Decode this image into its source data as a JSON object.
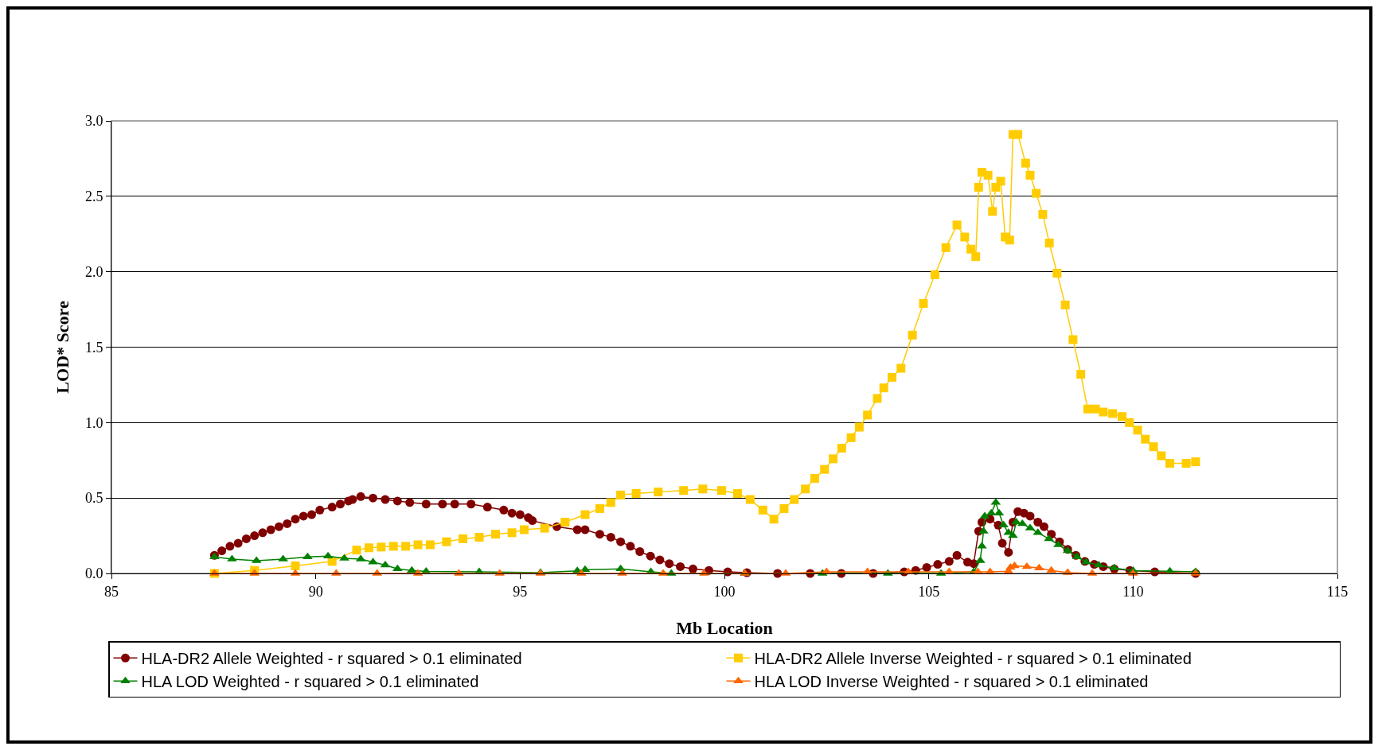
{
  "chart_data": {
    "type": "line",
    "xlabel": "Mb Location",
    "ylabel": "LOD* Score",
    "xlim": [
      85,
      115
    ],
    "xticks": [
      85,
      90,
      95,
      100,
      105,
      110,
      115
    ],
    "ylim": [
      0,
      3
    ],
    "yticks": [
      {
        "value": 0,
        "label": "0.0"
      },
      {
        "value": 0.5,
        "label": "0.5"
      },
      {
        "value": 1,
        "label": "1.0"
      },
      {
        "value": 1.5,
        "label": "1.5"
      },
      {
        "value": 2,
        "label": "2.0"
      },
      {
        "value": 2.5,
        "label": "2.5"
      },
      {
        "value": 3,
        "label": "3.0"
      }
    ],
    "grid": "y",
    "legend": "bottom",
    "line_style": "solid",
    "series": [
      {
        "name": "HLA-DR2 Allele Weighted - r squared > 0.1 eliminated",
        "color": "#800000",
        "marker": "circle",
        "x": [
          87.52,
          87.7,
          87.9,
          88.1,
          88.3,
          88.5,
          88.7,
          88.9,
          89.1,
          89.3,
          89.5,
          89.7,
          89.9,
          90.1,
          90.4,
          90.6,
          90.8,
          90.9,
          91.1,
          91.4,
          91.7,
          92.0,
          92.3,
          92.7,
          93.1,
          93.4,
          93.8,
          94.2,
          94.6,
          94.8,
          95.0,
          95.2,
          95.3,
          95.9,
          96.4,
          96.59,
          96.95,
          97.22,
          97.46,
          97.7,
          97.93,
          98.19,
          98.42,
          98.65,
          98.92,
          99.23,
          99.62,
          100.08,
          100.55,
          101.3,
          102.1,
          102.86,
          103.64,
          104.4,
          104.68,
          104.95,
          105.22,
          105.5,
          105.69,
          105.95,
          106.1,
          106.22,
          106.3,
          106.5,
          106.7,
          106.8,
          106.95,
          107.06,
          107.18,
          107.33,
          107.48,
          107.67,
          107.82,
          108.0,
          108.2,
          108.4,
          108.6,
          108.82,
          109.05,
          109.27,
          109.54,
          109.92,
          110.53,
          111.53
        ],
        "values": [
          0.12,
          0.15,
          0.18,
          0.2,
          0.23,
          0.25,
          0.27,
          0.29,
          0.31,
          0.33,
          0.36,
          0.38,
          0.39,
          0.42,
          0.44,
          0.46,
          0.48,
          0.49,
          0.51,
          0.5,
          0.49,
          0.48,
          0.47,
          0.46,
          0.46,
          0.46,
          0.46,
          0.44,
          0.42,
          0.4,
          0.39,
          0.37,
          0.35,
          0.31,
          0.29,
          0.29,
          0.26,
          0.24,
          0.21,
          0.18,
          0.145,
          0.115,
          0.09,
          0.065,
          0.045,
          0.03,
          0.02,
          0.01,
          0.005,
          0,
          0,
          0,
          0,
          0.01,
          0.02,
          0.04,
          0.06,
          0.08,
          0.12,
          0.075,
          0.065,
          0.28,
          0.34,
          0.36,
          0.32,
          0.2,
          0.14,
          0.34,
          0.41,
          0.4,
          0.38,
          0.34,
          0.31,
          0.26,
          0.21,
          0.16,
          0.12,
          0.08,
          0.06,
          0.045,
          0.03,
          0.02,
          0.01,
          0
        ]
      },
      {
        "name": "HLA-DR2 Allele Inverse Weighted - r squared > 0.1 eliminated",
        "color": "#ffcc00",
        "marker": "square",
        "x": [
          87.52,
          88.5,
          89.5,
          90.4,
          91.0,
          91.3,
          91.6,
          91.9,
          92.2,
          92.5,
          92.8,
          93.2,
          93.6,
          94.0,
          94.4,
          94.8,
          95.1,
          95.6,
          96.1,
          96.59,
          96.95,
          97.22,
          97.46,
          97.84,
          98.38,
          99.0,
          99.47,
          99.93,
          100.32,
          100.63,
          100.94,
          101.21,
          101.46,
          101.71,
          101.98,
          102.21,
          102.45,
          102.66,
          102.87,
          103.1,
          103.3,
          103.5,
          103.74,
          103.9,
          104.1,
          104.32,
          104.6,
          104.87,
          105.15,
          105.42,
          105.69,
          105.88,
          106.03,
          106.15,
          106.22,
          106.3,
          106.45,
          106.56,
          106.64,
          106.76,
          106.87,
          106.98,
          107.06,
          107.18,
          107.37,
          107.48,
          107.63,
          107.79,
          107.95,
          108.14,
          108.34,
          108.53,
          108.72,
          108.89,
          109.08,
          109.27,
          109.5,
          109.73,
          109.91,
          110.11,
          110.3,
          110.5,
          110.69,
          110.9,
          111.3,
          111.53
        ],
        "values": [
          0,
          0.02,
          0.05,
          0.08,
          0.155,
          0.17,
          0.175,
          0.18,
          0.18,
          0.19,
          0.19,
          0.21,
          0.23,
          0.24,
          0.26,
          0.27,
          0.29,
          0.3,
          0.34,
          0.39,
          0.43,
          0.47,
          0.52,
          0.53,
          0.54,
          0.55,
          0.56,
          0.55,
          0.53,
          0.49,
          0.42,
          0.36,
          0.43,
          0.49,
          0.56,
          0.63,
          0.69,
          0.76,
          0.83,
          0.9,
          0.97,
          1.05,
          1.16,
          1.23,
          1.3,
          1.36,
          1.58,
          1.79,
          1.98,
          2.16,
          2.31,
          2.23,
          2.15,
          2.1,
          2.56,
          2.66,
          2.64,
          2.4,
          2.56,
          2.6,
          2.23,
          2.21,
          2.91,
          2.91,
          2.72,
          2.64,
          2.52,
          2.38,
          2.19,
          1.99,
          1.78,
          1.55,
          1.32,
          1.09,
          1.09,
          1.07,
          1.06,
          1.04,
          1.0,
          0.95,
          0.89,
          0.84,
          0.78,
          0.73,
          0.73,
          0.74
        ]
      },
      {
        "name": "HLA LOD Weighted - r squared > 0.1 eliminated",
        "color": "#008000",
        "marker": "triangle",
        "x": [
          87.52,
          87.95,
          88.55,
          89.2,
          89.8,
          90.3,
          90.7,
          91.1,
          91.4,
          91.7,
          92.0,
          92.35,
          92.7,
          94.0,
          95.5,
          96.4,
          96.59,
          97.46,
          98.2,
          98.7,
          100.5,
          102.4,
          104.0,
          105.3,
          106.1,
          106.26,
          106.3,
          106.34,
          106.37,
          106.53,
          106.64,
          106.72,
          106.83,
          106.95,
          107.06,
          107.14,
          107.29,
          107.48,
          107.67,
          107.94,
          108.17,
          108.4,
          108.63,
          108.85,
          109.16,
          109.54,
          110.0,
          110.9,
          111.53
        ],
        "values": [
          0.11,
          0.095,
          0.085,
          0.095,
          0.11,
          0.115,
          0.1,
          0.095,
          0.075,
          0.055,
          0.03,
          0.02,
          0.013,
          0.01,
          0.005,
          0.017,
          0.025,
          0.03,
          0.01,
          0,
          0,
          0,
          0,
          0,
          0.01,
          0.085,
          0.18,
          0.28,
          0.38,
          0.4,
          0.47,
          0.4,
          0.32,
          0.27,
          0.25,
          0.34,
          0.33,
          0.3,
          0.27,
          0.23,
          0.19,
          0.15,
          0.11,
          0.075,
          0.055,
          0.035,
          0.018,
          0.014,
          0.01
        ]
      },
      {
        "name": "HLA LOD Inverse Weighted - r squared > 0.1 eliminated",
        "color": "#ff6600",
        "marker": "triangle",
        "x": [
          87.52,
          88.5,
          89.5,
          90.5,
          91.5,
          92.5,
          93.5,
          94.5,
          95.5,
          96.5,
          97.5,
          98.5,
          99.5,
          100.5,
          101.5,
          102.5,
          103.5,
          104.5,
          105.5,
          106.2,
          106.5,
          106.95,
          107.0,
          107.1,
          107.4,
          107.7,
          108.0,
          108.4,
          109.0,
          110.0,
          111.53
        ],
        "values": [
          0,
          0,
          0,
          0,
          0,
          0,
          0,
          0,
          0,
          0,
          0,
          0,
          0,
          0,
          0,
          0.01,
          0.01,
          0.01,
          0.01,
          0.01,
          0.01,
          0.015,
          0.04,
          0.05,
          0.045,
          0.035,
          0.02,
          0.005,
          0,
          0,
          0
        ]
      }
    ]
  }
}
